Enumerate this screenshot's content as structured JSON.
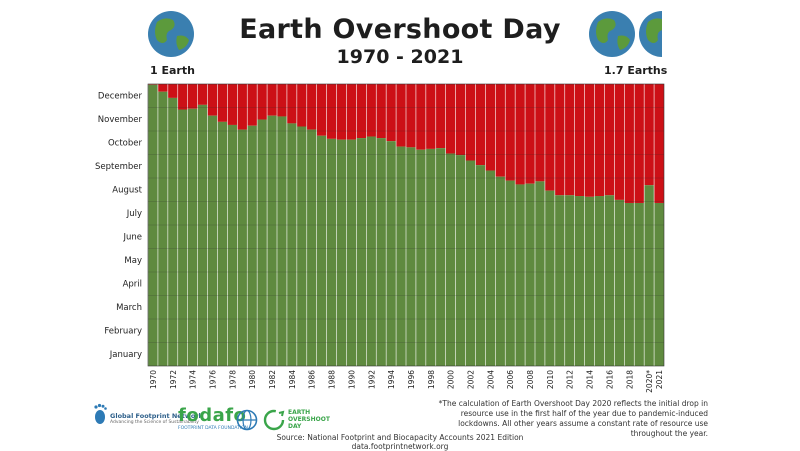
{
  "header": {
    "title": "Earth Overshoot Day",
    "subtitle": "1970 - 2021",
    "left_label": "1 Earth",
    "right_label": "1.7 Earths"
  },
  "colors": {
    "green": "#5f8a3f",
    "red": "#cc1016",
    "globe_ocean": "#3a7fb0",
    "globe_land": "#5c9a3c"
  },
  "chart_data": {
    "type": "bar",
    "title": "Earth Overshoot Day",
    "subtitle": "1970 - 2021",
    "y_axis_labels": [
      "December",
      "November",
      "October",
      "September",
      "August",
      "July",
      "June",
      "May",
      "April",
      "March",
      "February",
      "January"
    ],
    "ylim_day_of_year": [
      0,
      365
    ],
    "grid": true,
    "series": [
      {
        "name": "",
        "color": "#5f8a3f"
      }
    ],
    "x": [
      "1970",
      "1971",
      "1972",
      "1973",
      "1974",
      "1975",
      "1976",
      "1977",
      "1978",
      "1979",
      "1980",
      "1981",
      "1982",
      "1983",
      "1984",
      "1985",
      "1986",
      "1987",
      "1988",
      "1989",
      "1990",
      "1991",
      "1992",
      "1993",
      "1994",
      "1995",
      "1996",
      "1997",
      "1998",
      "1999",
      "2000",
      "2001",
      "2002",
      "2003",
      "2004",
      "2005",
      "2006",
      "2007",
      "2008",
      "2009",
      "2010",
      "2011",
      "2012",
      "2013",
      "2014",
      "2015",
      "2016",
      "2017",
      "2018",
      "2019",
      "2020*",
      "2021"
    ],
    "x_tick_labels": [
      "1970",
      "1972",
      "1974",
      "1976",
      "1978",
      "1980",
      "1982",
      "1984",
      "1986",
      "1988",
      "1990",
      "1992",
      "1994",
      "1996",
      "1998",
      "2000",
      "2002",
      "2004",
      "2006",
      "2008",
      "2010",
      "2012",
      "2014",
      "2016",
      "2018",
      "2020*",
      "2021"
    ],
    "values": [
      364,
      355,
      347,
      332,
      333,
      338,
      324,
      316,
      312,
      306,
      311,
      319,
      324,
      323,
      314,
      310,
      306,
      298,
      294,
      293,
      293,
      295,
      297,
      295,
      291,
      284,
      283,
      280,
      281,
      282,
      275,
      273,
      266,
      260,
      253,
      245,
      240,
      235,
      236,
      239,
      227,
      221,
      221,
      220,
      219,
      220,
      221,
      215,
      211,
      211,
      234,
      211
    ]
  },
  "footnote": "*The calculation of Earth Overshoot Day 2020 reflects the initial drop in resource use in the first half of the year due to pandemic-induced lockdowns. All other years assume a constant rate of resource use throughout the year.",
  "source": {
    "line1": "Source: National Footprint and Biocapacity Accounts 2021 Edition",
    "line2": "data.footprintnetwork.org"
  },
  "logos": {
    "gfn_name": "Global Footprint Network",
    "gfn_tagline": "Advancing the Science of Sustainability",
    "fodafo_name": "fodafo",
    "fodafo_tagline": "FOOTPRINT DATA FOUNDATION",
    "eod_line1": "EARTH",
    "eod_line2": "OVERSHOOT",
    "eod_line3": "DAY"
  }
}
